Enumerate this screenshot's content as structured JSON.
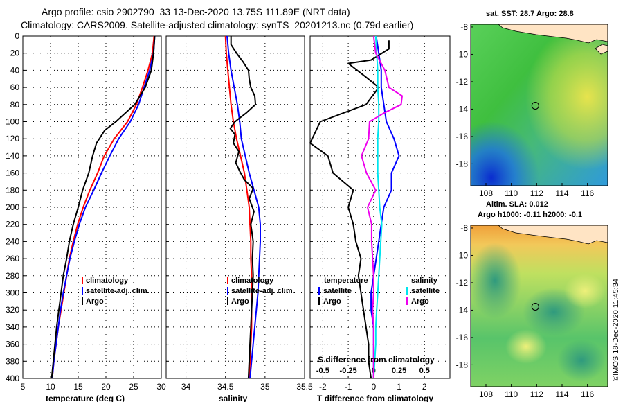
{
  "header": {
    "line1": "Argo profile: csio 2902790_33 13-Dec-2020 13.75S 111.89E (NRT data)",
    "line2": "Climatology: CARS2009. Satellite-adjusted climatology: synTS_20201213.nc (0.79d earlier)"
  },
  "side_stamp": "©IMOS 18-Dec-2020 11:45:34",
  "colors": {
    "climatology": "#ff0000",
    "satellite": "#0000ff",
    "argo": "#000000",
    "sal_satellite": "#00e5ee",
    "sal_argo": "#ee00ee"
  },
  "chart_data": [
    {
      "type": "line",
      "id": "temperature",
      "xlabel": "temperature (deg C)",
      "xlim": [
        5,
        30
      ],
      "xticks": [
        "5",
        "10",
        "15",
        "20",
        "25",
        "30"
      ],
      "ylim": [
        400,
        0
      ],
      "yticks": [
        "0",
        "20",
        "40",
        "60",
        "80",
        "100",
        "120",
        "140",
        "160",
        "180",
        "200",
        "220",
        "240",
        "260",
        "280",
        "300",
        "320",
        "340",
        "360",
        "380",
        "400"
      ],
      "legend": [
        "climatology",
        "satellite-adj. clim.",
        "Argo"
      ],
      "series": [
        {
          "name": "climatology",
          "points": [
            [
              28.7,
              0
            ],
            [
              28.4,
              20
            ],
            [
              27.6,
              40
            ],
            [
              26.6,
              60
            ],
            [
              25.5,
              80
            ],
            [
              23.9,
              100
            ],
            [
              21.5,
              120
            ],
            [
              19.7,
              140
            ],
            [
              18.5,
              160
            ],
            [
              17.1,
              180
            ],
            [
              15.9,
              200
            ],
            [
              14.9,
              220
            ],
            [
              14.1,
              240
            ],
            [
              13.4,
              260
            ],
            [
              12.9,
              280
            ],
            [
              12.4,
              300
            ],
            [
              11.9,
              320
            ],
            [
              11.4,
              340
            ],
            [
              11.0,
              360
            ],
            [
              10.6,
              380
            ],
            [
              10.3,
              400
            ]
          ]
        },
        {
          "name": "satellite-adj. clim.",
          "points": [
            [
              28.8,
              0
            ],
            [
              28.6,
              20
            ],
            [
              27.9,
              40
            ],
            [
              26.9,
              60
            ],
            [
              25.9,
              80
            ],
            [
              24.4,
              100
            ],
            [
              22.3,
              120
            ],
            [
              20.7,
              140
            ],
            [
              19.2,
              160
            ],
            [
              17.8,
              180
            ],
            [
              16.3,
              200
            ],
            [
              15.2,
              220
            ],
            [
              14.3,
              240
            ],
            [
              13.5,
              260
            ],
            [
              12.9,
              280
            ],
            [
              12.3,
              300
            ],
            [
              11.8,
              320
            ],
            [
              11.4,
              340
            ],
            [
              11.0,
              360
            ],
            [
              10.6,
              380
            ],
            [
              10.3,
              400
            ]
          ]
        },
        {
          "name": "Argo",
          "points": [
            [
              28.8,
              0
            ],
            [
              28.6,
              20
            ],
            [
              28.2,
              40
            ],
            [
              27.1,
              60
            ],
            [
              25.2,
              80
            ],
            [
              21.8,
              100
            ],
            [
              19.8,
              110
            ],
            [
              18.3,
              125
            ],
            [
              17.6,
              140
            ],
            [
              16.9,
              160
            ],
            [
              15.8,
              180
            ],
            [
              15.0,
              200
            ],
            [
              14.1,
              220
            ],
            [
              13.4,
              240
            ],
            [
              12.9,
              260
            ],
            [
              12.3,
              280
            ],
            [
              11.9,
              300
            ],
            [
              11.5,
              320
            ],
            [
              11.1,
              340
            ],
            [
              10.8,
              360
            ],
            [
              10.5,
              380
            ],
            [
              10.2,
              400
            ]
          ]
        }
      ]
    },
    {
      "type": "line",
      "id": "salinity",
      "xlabel": "salinity",
      "xlim": [
        33.75,
        35.5
      ],
      "xticks": [
        "34",
        "34.5",
        "35",
        "35.5"
      ],
      "ylim": [
        400,
        0
      ],
      "legend": [
        "climatology",
        "satellite-adj. clim.",
        "Argo"
      ],
      "series": [
        {
          "name": "climatology",
          "points": [
            [
              34.5,
              0
            ],
            [
              34.51,
              20
            ],
            [
              34.53,
              40
            ],
            [
              34.55,
              60
            ],
            [
              34.57,
              80
            ],
            [
              34.6,
              100
            ],
            [
              34.64,
              120
            ],
            [
              34.69,
              140
            ],
            [
              34.74,
              160
            ],
            [
              34.77,
              180
            ],
            [
              34.8,
              200
            ],
            [
              34.81,
              220
            ],
            [
              34.82,
              240
            ],
            [
              34.82,
              260
            ],
            [
              34.83,
              280
            ],
            [
              34.83,
              300
            ],
            [
              34.83,
              320
            ],
            [
              34.83,
              340
            ],
            [
              34.82,
              360
            ],
            [
              34.81,
              380
            ],
            [
              34.8,
              400
            ]
          ]
        },
        {
          "name": "satellite-adj. clim.",
          "points": [
            [
              34.52,
              0
            ],
            [
              34.54,
              20
            ],
            [
              34.57,
              40
            ],
            [
              34.61,
              60
            ],
            [
              34.65,
              80
            ],
            [
              34.68,
              100
            ],
            [
              34.7,
              120
            ],
            [
              34.75,
              140
            ],
            [
              34.8,
              160
            ],
            [
              34.86,
              180
            ],
            [
              34.92,
              200
            ],
            [
              34.94,
              220
            ],
            [
              34.94,
              240
            ],
            [
              34.93,
              260
            ],
            [
              34.92,
              280
            ],
            [
              34.91,
              300
            ],
            [
              34.89,
              320
            ],
            [
              34.87,
              340
            ],
            [
              34.85,
              360
            ],
            [
              34.83,
              380
            ],
            [
              34.81,
              400
            ]
          ]
        },
        {
          "name": "Argo",
          "points": [
            [
              34.57,
              0
            ],
            [
              34.57,
              10
            ],
            [
              34.64,
              20
            ],
            [
              34.72,
              30
            ],
            [
              34.79,
              40
            ],
            [
              34.8,
              50
            ],
            [
              34.82,
              60
            ],
            [
              34.87,
              70
            ],
            [
              34.88,
              80
            ],
            [
              34.76,
              90
            ],
            [
              34.62,
              100
            ],
            [
              34.56,
              108
            ],
            [
              34.62,
              115
            ],
            [
              34.6,
              125
            ],
            [
              34.67,
              135
            ],
            [
              34.63,
              148
            ],
            [
              34.68,
              158
            ],
            [
              34.74,
              168
            ],
            [
              34.85,
              178
            ],
            [
              34.8,
              190
            ],
            [
              34.86,
              205
            ],
            [
              34.82,
              220
            ],
            [
              34.85,
              240
            ],
            [
              34.84,
              260
            ],
            [
              34.85,
              280
            ],
            [
              34.84,
              300
            ],
            [
              34.83,
              320
            ],
            [
              34.82,
              340
            ],
            [
              34.81,
              360
            ],
            [
              34.8,
              380
            ],
            [
              34.79,
              400
            ]
          ]
        }
      ]
    },
    {
      "type": "line",
      "id": "difference",
      "xlabel": "T difference from climatology",
      "top_label": "S difference from climatology",
      "xlim": [
        -2.5,
        3
      ],
      "xticks": [
        "-2",
        "-1",
        "0",
        "1",
        "2"
      ],
      "top_ticks": [
        "-0.5",
        "-0.25",
        "0",
        "0.25",
        "0.5"
      ],
      "ylim": [
        400,
        0
      ],
      "legend_temperature": [
        "temperature",
        "satellite",
        "Argo"
      ],
      "legend_salinity": [
        "salinity",
        "satellite",
        "Argo"
      ],
      "series": [
        {
          "name": "temperature satellite",
          "points": [
            [
              0.1,
              0
            ],
            [
              0.2,
              20
            ],
            [
              0.3,
              40
            ],
            [
              0.3,
              60
            ],
            [
              0.4,
              80
            ],
            [
              0.5,
              100
            ],
            [
              0.8,
              120
            ],
            [
              1.0,
              140
            ],
            [
              0.7,
              160
            ],
            [
              0.7,
              180
            ],
            [
              0.4,
              200
            ],
            [
              0.3,
              220
            ],
            [
              0.2,
              240
            ],
            [
              0.1,
              260
            ],
            [
              0.0,
              280
            ],
            [
              -0.1,
              300
            ],
            [
              -0.1,
              320
            ],
            [
              0.0,
              340
            ],
            [
              0.0,
              360
            ],
            [
              0.0,
              380
            ],
            [
              0.0,
              400
            ]
          ]
        },
        {
          "name": "temperature Argo",
          "points": [
            [
              0.6,
              5
            ],
            [
              0.6,
              15
            ],
            [
              -0.1,
              28
            ],
            [
              -1.0,
              32
            ],
            [
              -0.3,
              48
            ],
            [
              0.2,
              60
            ],
            [
              -0.3,
              80
            ],
            [
              -2.1,
              100
            ],
            [
              -2.5,
              125
            ],
            [
              -1.8,
              140
            ],
            [
              -1.6,
              160
            ],
            [
              -0.8,
              180
            ],
            [
              -1.0,
              200
            ],
            [
              -0.8,
              220
            ],
            [
              -0.7,
              240
            ],
            [
              -0.5,
              260
            ],
            [
              -0.6,
              280
            ],
            [
              -0.5,
              300
            ],
            [
              -0.4,
              320
            ],
            [
              -0.3,
              340
            ],
            [
              -0.2,
              360
            ],
            [
              -0.2,
              380
            ],
            [
              -0.1,
              400
            ]
          ]
        },
        {
          "name": "salinity satellite",
          "points": [
            [
              0.02,
              0
            ],
            [
              0.03,
              20
            ],
            [
              0.04,
              40
            ],
            [
              0.04,
              60
            ],
            [
              0.05,
              80
            ],
            [
              0.05,
              100
            ],
            [
              0.04,
              120
            ],
            [
              0.04,
              140
            ],
            [
              0.04,
              160
            ],
            [
              0.05,
              180
            ],
            [
              0.06,
              200
            ],
            [
              0.08,
              220
            ],
            [
              0.07,
              240
            ],
            [
              0.06,
              260
            ],
            [
              0.05,
              280
            ],
            [
              0.04,
              300
            ],
            [
              0.03,
              320
            ],
            [
              0.02,
              340
            ],
            [
              0.02,
              360
            ],
            [
              0.01,
              380
            ],
            [
              0.0,
              400
            ]
          ]
        },
        {
          "name": "salinity Argo",
          "points": [
            [
              0.0,
              0
            ],
            [
              0.02,
              20
            ],
            [
              0.11,
              40
            ],
            [
              0.15,
              60
            ],
            [
              0.28,
              70
            ],
            [
              0.27,
              80
            ],
            [
              0.1,
              90
            ],
            [
              -0.04,
              100
            ],
            [
              -0.05,
              120
            ],
            [
              -0.12,
              140
            ],
            [
              -0.07,
              160
            ],
            [
              0.02,
              180
            ],
            [
              -0.06,
              200
            ],
            [
              -0.02,
              220
            ],
            [
              -0.02,
              240
            ],
            [
              -0.01,
              260
            ],
            [
              0.0,
              280
            ],
            [
              0.0,
              300
            ],
            [
              -0.01,
              320
            ],
            [
              0.0,
              340
            ],
            [
              0.0,
              360
            ],
            [
              0.0,
              380
            ],
            [
              0.0,
              400
            ]
          ]
        }
      ]
    },
    {
      "type": "heatmap",
      "id": "sst-map",
      "title": "sat. SST: 28.7 Argo: 28.8",
      "xticks": [
        "108",
        "110",
        "112",
        "114",
        "116"
      ],
      "yticks": [
        "-8",
        "-10",
        "-12",
        "-14",
        "-16",
        "-18"
      ],
      "xlim": [
        106.8,
        117.6
      ],
      "ylim": [
        -19.6,
        -7.8
      ],
      "argo_position": [
        111.89,
        -13.75
      ]
    },
    {
      "type": "heatmap",
      "id": "sla-map",
      "title_line1": "Altim. SLA: 0.012",
      "title_line2": "Argo h1000: -0.11 h2000: -0.1",
      "xticks": [
        "108",
        "110",
        "112",
        "114",
        "116"
      ],
      "yticks": [
        "-8",
        "-10",
        "-12",
        "-14",
        "-16",
        "-18"
      ],
      "xlim": [
        106.8,
        117.6
      ],
      "ylim": [
        -19.6,
        -7.8
      ],
      "argo_position": [
        111.89,
        -13.75
      ]
    }
  ]
}
